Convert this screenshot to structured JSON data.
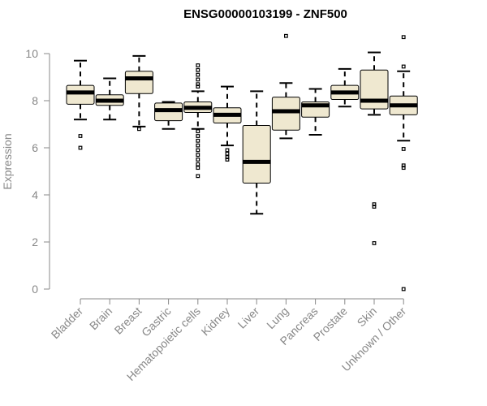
{
  "chart_data": {
    "type": "boxplot",
    "title": "ENSG00000103199 - ZNF500",
    "ylabel": "Expression",
    "xlabel": "",
    "ylim": [
      0,
      10.5
    ],
    "yticks": [
      0,
      2,
      4,
      6,
      8,
      10
    ],
    "categories": [
      "Bladder",
      "Brain",
      "Breast",
      "Gastric",
      "Hematopoietic cells",
      "Kidney",
      "Liver",
      "Lung",
      "Pancreas",
      "Prostate",
      "Skin",
      "Unknown / Other"
    ],
    "box_color": "#efe8d0",
    "boxes": [
      {
        "min": 7.2,
        "q1": 7.85,
        "median": 8.35,
        "q3": 8.65,
        "max": 9.7,
        "outliers": [
          6.5,
          6.0
        ]
      },
      {
        "min": 7.2,
        "q1": 7.8,
        "median": 8.0,
        "q3": 8.25,
        "max": 8.95,
        "outliers": []
      },
      {
        "min": 6.9,
        "q1": 8.3,
        "median": 8.95,
        "q3": 9.25,
        "max": 9.9,
        "outliers": [
          6.8
        ]
      },
      {
        "min": 6.8,
        "q1": 7.15,
        "median": 7.6,
        "q3": 7.9,
        "max": 7.95,
        "outliers": []
      },
      {
        "min": 6.8,
        "q1": 7.5,
        "median": 7.7,
        "q3": 7.95,
        "max": 8.4,
        "outliers": [
          8.6,
          8.7,
          8.9,
          9.1,
          9.3,
          9.5,
          6.7,
          6.5,
          6.3,
          6.1,
          5.9,
          5.7,
          5.5,
          5.3,
          5.15,
          4.8
        ]
      },
      {
        "min": 6.1,
        "q1": 7.05,
        "median": 7.4,
        "q3": 7.7,
        "max": 8.6,
        "outliers": [
          5.9,
          5.75,
          5.6,
          5.5
        ]
      },
      {
        "min": 3.2,
        "q1": 4.5,
        "median": 5.4,
        "q3": 6.95,
        "max": 8.4,
        "outliers": []
      },
      {
        "min": 6.4,
        "q1": 6.75,
        "median": 7.55,
        "q3": 8.15,
        "max": 8.75,
        "outliers": [
          10.75
        ]
      },
      {
        "min": 6.55,
        "q1": 7.3,
        "median": 7.8,
        "q3": 7.95,
        "max": 8.5,
        "outliers": []
      },
      {
        "min": 7.75,
        "q1": 8.05,
        "median": 8.35,
        "q3": 8.65,
        "max": 9.35,
        "outliers": []
      },
      {
        "min": 7.4,
        "q1": 7.65,
        "median": 8.0,
        "q3": 9.3,
        "max": 10.05,
        "outliers": [
          3.6,
          3.5,
          1.95
        ]
      },
      {
        "min": 6.3,
        "q1": 7.4,
        "median": 7.8,
        "q3": 8.2,
        "max": 9.25,
        "outliers": [
          10.7,
          9.45,
          5.95,
          5.25,
          5.15,
          0.0
        ]
      }
    ]
  }
}
